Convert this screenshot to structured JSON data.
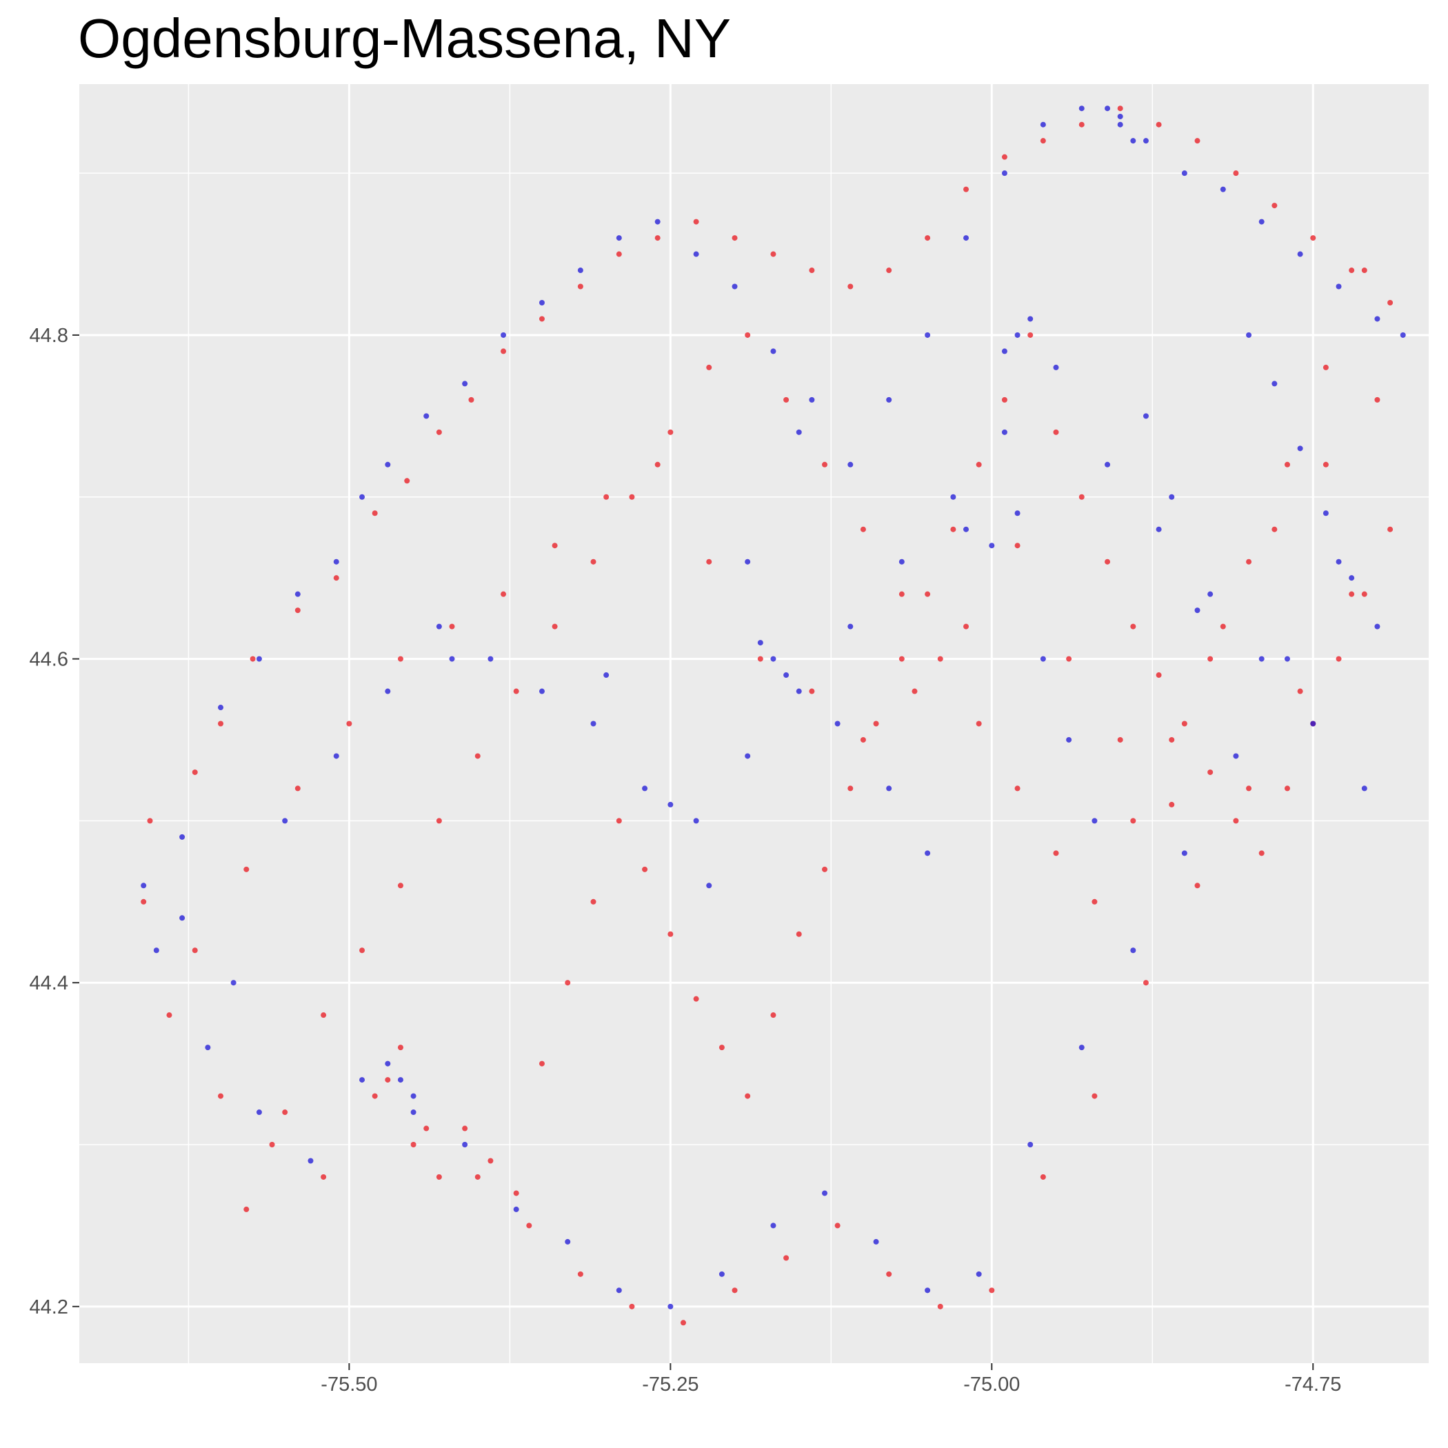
{
  "chart_data": {
    "type": "scatter",
    "title": "Ogdensburg-Massena, NY",
    "xlabel": "",
    "ylabel": "",
    "xlim": [
      -75.71,
      -74.66
    ],
    "ylim": [
      44.165,
      44.955
    ],
    "x_ticks": [
      -75.5,
      -75.25,
      -75.0,
      -74.75
    ],
    "x_tick_labels": [
      "-75.50",
      "-75.25",
      "-75.00",
      "-74.75"
    ],
    "y_ticks": [
      44.2,
      44.4,
      44.6,
      44.8
    ],
    "y_tick_labels": [
      "44.2",
      "44.4",
      "44.6",
      "44.8"
    ],
    "grid": true,
    "legend": "none",
    "panel_background": "#ebebeb",
    "grid_color": "#ffffff",
    "colors": {
      "red_group": "#e8141c",
      "blue_group": "#1a13d6"
    },
    "series": [
      {
        "color": "red_group",
        "x": [
          -75.655,
          -75.62,
          -75.6,
          -75.575,
          -75.54,
          -75.51,
          -75.48,
          -75.455,
          -75.43,
          -75.405,
          -75.38,
          -75.35,
          -75.32,
          -75.29,
          -75.26,
          -75.23,
          -75.2,
          -75.17,
          -75.14,
          -75.11,
          -75.08,
          -75.05,
          -75.02,
          -74.99,
          -74.96,
          -74.93,
          -74.9,
          -74.87,
          -74.84,
          -74.81,
          -74.78,
          -74.75,
          -74.72,
          -74.69,
          -75.64,
          -75.6,
          -75.56,
          -75.52,
          -75.48,
          -75.44,
          -75.4,
          -75.36,
          -75.32,
          -75.28,
          -75.24,
          -75.2,
          -75.16,
          -75.12,
          -75.08,
          -75.04,
          -75.0,
          -74.96,
          -74.92,
          -74.88,
          -74.84,
          -74.8,
          -74.76,
          -74.72,
          -75.66,
          -75.62,
          -75.58,
          -75.54,
          -75.5,
          -75.46,
          -75.42,
          -75.38,
          -75.34,
          -75.3,
          -75.26,
          -75.22,
          -75.18,
          -75.14,
          -75.1,
          -75.06,
          -75.02,
          -74.98,
          -74.94,
          -74.9,
          -74.86,
          -74.82,
          -74.78,
          -74.74,
          -74.7,
          -75.47,
          -75.45,
          -75.43,
          -75.46,
          -75.41,
          -75.39,
          -75.37,
          -75.35,
          -75.33,
          -75.31,
          -75.29,
          -75.27,
          -75.25,
          -75.23,
          -75.21,
          -75.19,
          -75.17,
          -75.15,
          -75.13,
          -75.11,
          -75.09,
          -75.07,
          -75.05,
          -75.03,
          -75.01,
          -74.99,
          -74.97,
          -74.95,
          -74.93,
          -74.91,
          -74.89,
          -74.87,
          -74.85,
          -74.83,
          -74.81,
          -74.79,
          -74.77,
          -74.75,
          -74.73,
          -74.71,
          -74.69,
          -75.58,
          -75.55,
          -75.52,
          -75.49,
          -75.46,
          -75.43,
          -75.4,
          -75.37,
          -75.34,
          -75.31,
          -75.28,
          -75.25,
          -75.22,
          -75.19,
          -75.16,
          -75.13,
          -75.1,
          -75.07,
          -75.04,
          -75.01,
          -74.98,
          -74.95,
          -74.92,
          -74.89,
          -74.86,
          -74.83,
          -74.8,
          -74.77,
          -74.74,
          -74.71
        ],
        "y": [
          44.5,
          44.53,
          44.56,
          44.6,
          44.63,
          44.65,
          44.69,
          44.71,
          44.74,
          44.76,
          44.79,
          44.81,
          44.83,
          44.85,
          44.86,
          44.87,
          44.86,
          44.85,
          44.84,
          44.83,
          44.84,
          44.86,
          44.89,
          44.91,
          44.92,
          44.93,
          44.94,
          44.93,
          44.92,
          44.9,
          44.88,
          44.86,
          44.84,
          44.82,
          44.38,
          44.33,
          44.3,
          44.28,
          44.33,
          44.31,
          44.28,
          44.25,
          44.22,
          44.2,
          44.19,
          44.21,
          44.23,
          44.25,
          44.22,
          44.2,
          44.21,
          44.28,
          44.33,
          44.4,
          44.46,
          44.52,
          44.58,
          44.64,
          44.45,
          44.42,
          44.47,
          44.52,
          44.56,
          44.6,
          44.62,
          44.64,
          44.67,
          44.7,
          44.72,
          44.66,
          44.6,
          44.58,
          44.55,
          44.58,
          44.62,
          44.67,
          44.6,
          44.55,
          44.51,
          44.62,
          44.68,
          44.72,
          44.76,
          44.34,
          44.3,
          44.28,
          44.36,
          44.31,
          44.29,
          44.27,
          44.35,
          44.4,
          44.45,
          44.5,
          44.47,
          44.43,
          44.39,
          44.36,
          44.33,
          44.38,
          44.43,
          44.47,
          44.52,
          44.56,
          44.6,
          44.64,
          44.68,
          44.72,
          44.76,
          44.8,
          44.74,
          44.7,
          44.66,
          44.62,
          44.59,
          44.56,
          44.53,
          44.5,
          44.48,
          44.52,
          44.56,
          44.6,
          44.64,
          44.68,
          44.26,
          44.32,
          44.38,
          44.42,
          44.46,
          44.5,
          44.54,
          44.58,
          44.62,
          44.66,
          44.7,
          44.74,
          44.78,
          44.8,
          44.76,
          44.72,
          44.68,
          44.64,
          44.6,
          44.56,
          44.52,
          44.48,
          44.45,
          44.5,
          44.55,
          44.6,
          44.66,
          44.72,
          44.78,
          44.84
        ]
      },
      {
        "color": "blue_group",
        "x": [
          -75.66,
          -75.63,
          -75.6,
          -75.57,
          -75.54,
          -75.51,
          -75.49,
          -75.47,
          -75.44,
          -75.41,
          -75.38,
          -75.35,
          -75.32,
          -75.29,
          -75.26,
          -75.23,
          -75.2,
          -75.17,
          -75.14,
          -75.11,
          -75.08,
          -75.05,
          -75.02,
          -74.99,
          -74.96,
          -74.93,
          -74.9,
          -74.88,
          -74.85,
          -74.82,
          -74.79,
          -74.76,
          -74.73,
          -74.7,
          -75.65,
          -75.61,
          -75.57,
          -75.53,
          -75.49,
          -75.45,
          -75.41,
          -75.37,
          -75.33,
          -75.29,
          -75.25,
          -75.21,
          -75.17,
          -75.13,
          -75.09,
          -75.05,
          -75.01,
          -74.97,
          -74.93,
          -74.89,
          -74.85,
          -74.81,
          -74.77,
          -74.73,
          -75.63,
          -75.59,
          -75.55,
          -75.51,
          -75.47,
          -75.43,
          -75.39,
          -75.35,
          -75.31,
          -75.27,
          -75.23,
          -75.19,
          -75.15,
          -75.11,
          -75.07,
          -75.03,
          -74.99,
          -74.95,
          -74.91,
          -74.87,
          -74.83,
          -74.79,
          -74.75,
          -74.71,
          -75.17,
          -75.16,
          -75.18,
          -74.98,
          -74.97,
          -74.99,
          -74.9,
          -74.89,
          -74.91,
          -75.46,
          -75.45,
          -75.47,
          -75.42,
          -75.3,
          -75.25,
          -75.22,
          -75.19,
          -75.15,
          -75.12,
          -75.08,
          -75.05,
          -75.02,
          -75.0,
          -74.98,
          -74.96,
          -74.94,
          -74.92,
          -74.88,
          -74.86,
          -74.84,
          -74.8,
          -74.78,
          -74.76,
          -74.74,
          -74.72,
          -74.7,
          -74.68
        ],
        "y": [
          44.46,
          44.49,
          44.57,
          44.6,
          44.64,
          44.66,
          44.7,
          44.72,
          44.75,
          44.77,
          44.8,
          44.82,
          44.84,
          44.86,
          44.87,
          44.85,
          44.83,
          44.79,
          44.76,
          44.72,
          44.76,
          44.8,
          44.86,
          44.9,
          44.93,
          44.94,
          44.935,
          44.92,
          44.9,
          44.89,
          44.87,
          44.85,
          44.83,
          44.81,
          44.42,
          44.36,
          44.32,
          44.29,
          44.34,
          44.32,
          44.3,
          44.26,
          44.24,
          44.21,
          44.2,
          44.22,
          44.25,
          44.27,
          44.24,
          44.21,
          44.22,
          44.3,
          44.36,
          44.42,
          44.48,
          44.54,
          44.6,
          44.66,
          44.44,
          44.4,
          44.5,
          44.54,
          44.58,
          44.62,
          44.6,
          44.58,
          44.56,
          44.52,
          44.5,
          44.54,
          44.58,
          44.62,
          44.66,
          44.7,
          44.74,
          44.78,
          44.72,
          44.68,
          44.64,
          44.6,
          44.56,
          44.52,
          44.6,
          44.59,
          44.61,
          44.8,
          44.81,
          44.79,
          44.93,
          44.92,
          44.94,
          44.34,
          44.33,
          44.35,
          44.6,
          44.59,
          44.51,
          44.46,
          44.66,
          44.74,
          44.56,
          44.52,
          44.48,
          44.68,
          44.67,
          44.69,
          44.6,
          44.55,
          44.5,
          44.75,
          44.7,
          44.63,
          44.8,
          44.77,
          44.73,
          44.69,
          44.65,
          44.62,
          44.8
        ]
      }
    ]
  }
}
